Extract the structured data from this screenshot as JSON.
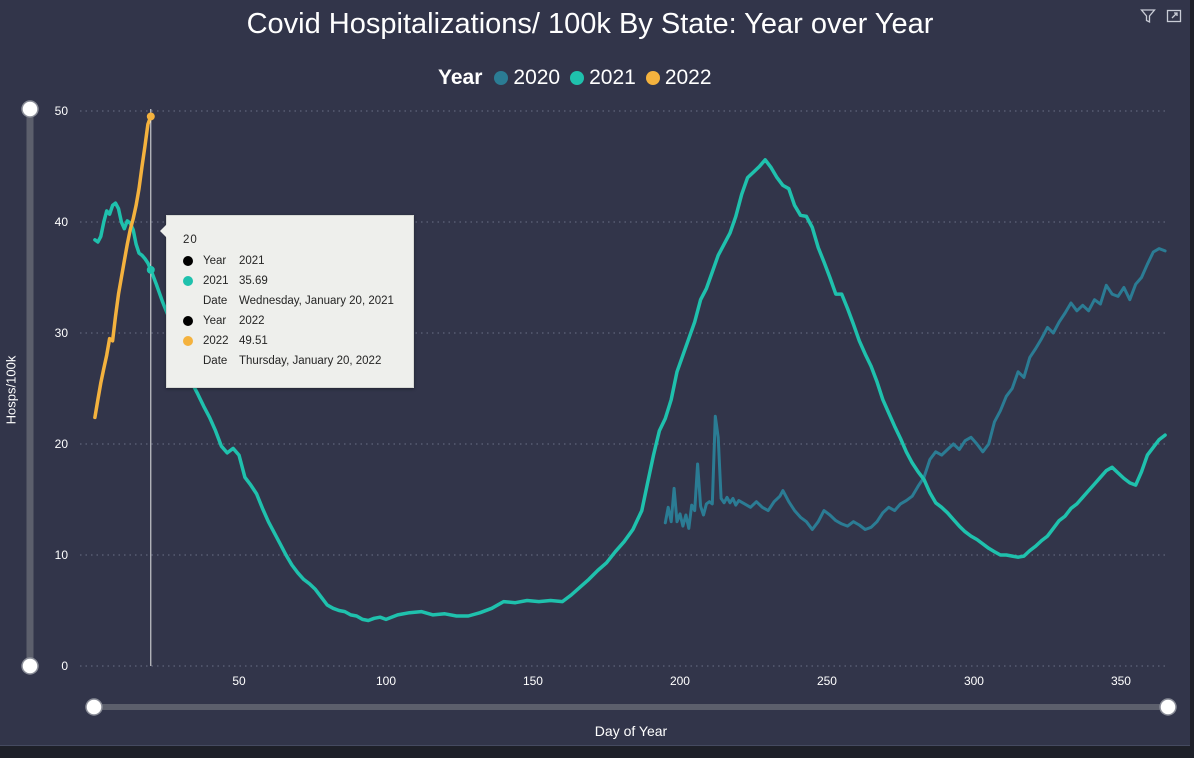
{
  "title": "Covid Hospitalizations/ 100k By State: Year over Year",
  "legend": {
    "heading": "Year",
    "items": [
      {
        "label": "2020",
        "color": "#2b7c94"
      },
      {
        "label": "2021",
        "color": "#1fc1ad"
      },
      {
        "label": "2022",
        "color": "#f4b23e"
      }
    ]
  },
  "icons": [
    "filter-icon",
    "focus-mode-icon"
  ],
  "tooltip": {
    "header": "20",
    "rows": [
      {
        "bullet": "#000000",
        "key": "Year",
        "value": "2021"
      },
      {
        "bullet": "#1fc1ad",
        "key": "2021",
        "value": "35.69"
      },
      {
        "bullet": "",
        "key": "Date",
        "value": "Wednesday, January 20, 2021"
      },
      {
        "bullet": "#000000",
        "key": "Year",
        "value": "2022"
      },
      {
        "bullet": "#f4b23e",
        "key": "2022",
        "value": "49.51"
      },
      {
        "bullet": "",
        "key": "Date",
        "value": "Thursday, January 20, 2022"
      }
    ]
  },
  "chart_data": {
    "type": "line",
    "title": "Covid Hospitalizations/ 100k By State: Year over Year",
    "xlabel": "Day of Year",
    "ylabel": "Hosps/100k",
    "xlim": [
      0,
      366
    ],
    "ylim": [
      0,
      50
    ],
    "xticks": [
      50,
      100,
      150,
      200,
      250,
      300,
      350
    ],
    "yticks": [
      0,
      10,
      20,
      30,
      40,
      50
    ],
    "grid": "horizontal dotted",
    "legend_position": "top",
    "hover_day": 20,
    "series": [
      {
        "name": "2020",
        "color": "#2b7c94",
        "points": [
          [
            195,
            12.9
          ],
          [
            196,
            14.3
          ],
          [
            197,
            13.0
          ],
          [
            198,
            16.0
          ],
          [
            199,
            13.0
          ],
          [
            200,
            13.7
          ],
          [
            201,
            12.6
          ],
          [
            202,
            13.6
          ],
          [
            203,
            12.4
          ],
          [
            204,
            14.5
          ],
          [
            205,
            14.0
          ],
          [
            206,
            18.2
          ],
          [
            207,
            14.4
          ],
          [
            208,
            13.6
          ],
          [
            209,
            14.6
          ],
          [
            210,
            14.8
          ],
          [
            211,
            14.6
          ],
          [
            212,
            22.5
          ],
          [
            213,
            20.6
          ],
          [
            214,
            15.1
          ],
          [
            215,
            14.7
          ],
          [
            216,
            15.2
          ],
          [
            217,
            14.7
          ],
          [
            218,
            15.1
          ],
          [
            219,
            14.5
          ],
          [
            220,
            14.9
          ],
          [
            222,
            14.6
          ],
          [
            224,
            14.3
          ],
          [
            226,
            14.8
          ],
          [
            228,
            14.3
          ],
          [
            230,
            14.0
          ],
          [
            232,
            14.8
          ],
          [
            234,
            15.3
          ],
          [
            235,
            15.8
          ],
          [
            237,
            14.8
          ],
          [
            239,
            14.0
          ],
          [
            241,
            13.4
          ],
          [
            243,
            13.0
          ],
          [
            245,
            12.3
          ],
          [
            247,
            13.0
          ],
          [
            249,
            14.0
          ],
          [
            251,
            13.6
          ],
          [
            253,
            13.1
          ],
          [
            255,
            12.8
          ],
          [
            257,
            12.6
          ],
          [
            259,
            13.0
          ],
          [
            261,
            12.7
          ],
          [
            263,
            12.3
          ],
          [
            265,
            12.5
          ],
          [
            267,
            13.0
          ],
          [
            269,
            13.8
          ],
          [
            271,
            14.3
          ],
          [
            273,
            14.0
          ],
          [
            275,
            14.6
          ],
          [
            277,
            14.9
          ],
          [
            279,
            15.3
          ],
          [
            281,
            16.2
          ],
          [
            283,
            17.0
          ],
          [
            285,
            18.6
          ],
          [
            287,
            19.3
          ],
          [
            289,
            19.0
          ],
          [
            291,
            19.5
          ],
          [
            293,
            20.0
          ],
          [
            295,
            19.5
          ],
          [
            297,
            20.3
          ],
          [
            299,
            20.6
          ],
          [
            301,
            20.0
          ],
          [
            303,
            19.3
          ],
          [
            305,
            20.0
          ],
          [
            307,
            22.0
          ],
          [
            309,
            23.0
          ],
          [
            311,
            24.3
          ],
          [
            313,
            25.0
          ],
          [
            315,
            26.5
          ],
          [
            317,
            26.0
          ],
          [
            319,
            27.8
          ],
          [
            321,
            28.6
          ],
          [
            323,
            29.5
          ],
          [
            325,
            30.5
          ],
          [
            327,
            30.0
          ],
          [
            329,
            31.0
          ],
          [
            331,
            31.8
          ],
          [
            333,
            32.7
          ],
          [
            335,
            32.0
          ],
          [
            337,
            32.5
          ],
          [
            339,
            32.0
          ],
          [
            341,
            33.0
          ],
          [
            343,
            32.6
          ],
          [
            345,
            34.3
          ],
          [
            347,
            33.5
          ],
          [
            349,
            33.3
          ],
          [
            351,
            34.1
          ],
          [
            353,
            33.0
          ],
          [
            355,
            34.4
          ],
          [
            357,
            35.0
          ],
          [
            359,
            36.2
          ],
          [
            361,
            37.3
          ],
          [
            363,
            37.6
          ],
          [
            365,
            37.4
          ]
        ]
      },
      {
        "name": "2021",
        "color": "#1fc1ad",
        "points": [
          [
            1,
            38.4
          ],
          [
            2,
            38.2
          ],
          [
            3,
            38.7
          ],
          [
            4,
            40.0
          ],
          [
            5,
            41.0
          ],
          [
            6,
            40.7
          ],
          [
            7,
            41.5
          ],
          [
            8,
            41.7
          ],
          [
            9,
            41.2
          ],
          [
            10,
            40.0
          ],
          [
            11,
            39.4
          ],
          [
            12,
            40.1
          ],
          [
            13,
            39.9
          ],
          [
            14,
            39.3
          ],
          [
            15,
            38.0
          ],
          [
            16,
            37.2
          ],
          [
            17,
            37.0
          ],
          [
            18,
            36.7
          ],
          [
            19,
            36.3
          ],
          [
            20,
            35.69
          ],
          [
            22,
            34.3
          ],
          [
            24,
            32.8
          ],
          [
            26,
            31.5
          ],
          [
            28,
            30.0
          ],
          [
            30,
            28.7
          ],
          [
            32,
            27.2
          ],
          [
            34,
            25.5
          ],
          [
            36,
            24.5
          ],
          [
            38,
            23.4
          ],
          [
            40,
            22.4
          ],
          [
            42,
            21.2
          ],
          [
            44,
            19.8
          ],
          [
            46,
            19.2
          ],
          [
            48,
            19.6
          ],
          [
            50,
            19.0
          ],
          [
            52,
            17.0
          ],
          [
            54,
            16.3
          ],
          [
            56,
            15.5
          ],
          [
            58,
            14.2
          ],
          [
            60,
            13.0
          ],
          [
            62,
            12.0
          ],
          [
            64,
            11.0
          ],
          [
            66,
            10.0
          ],
          [
            68,
            9.1
          ],
          [
            70,
            8.4
          ],
          [
            72,
            7.8
          ],
          [
            74,
            7.4
          ],
          [
            76,
            6.9
          ],
          [
            78,
            6.2
          ],
          [
            80,
            5.5
          ],
          [
            82,
            5.2
          ],
          [
            84,
            5.0
          ],
          [
            86,
            4.9
          ],
          [
            88,
            4.6
          ],
          [
            90,
            4.5
          ],
          [
            92,
            4.2
          ],
          [
            94,
            4.1
          ],
          [
            96,
            4.3
          ],
          [
            98,
            4.4
          ],
          [
            100,
            4.2
          ],
          [
            104,
            4.6
          ],
          [
            108,
            4.8
          ],
          [
            112,
            4.9
          ],
          [
            116,
            4.6
          ],
          [
            120,
            4.7
          ],
          [
            124,
            4.5
          ],
          [
            128,
            4.5
          ],
          [
            132,
            4.8
          ],
          [
            136,
            5.2
          ],
          [
            140,
            5.8
          ],
          [
            144,
            5.7
          ],
          [
            148,
            5.9
          ],
          [
            152,
            5.8
          ],
          [
            156,
            5.9
          ],
          [
            160,
            5.8
          ],
          [
            163,
            6.4
          ],
          [
            166,
            7.1
          ],
          [
            169,
            7.8
          ],
          [
            172,
            8.6
          ],
          [
            175,
            9.3
          ],
          [
            178,
            10.3
          ],
          [
            181,
            11.2
          ],
          [
            184,
            12.3
          ],
          [
            187,
            14.0
          ],
          [
            189,
            16.5
          ],
          [
            191,
            19.0
          ],
          [
            193,
            21.2
          ],
          [
            195,
            22.3
          ],
          [
            197,
            24.0
          ],
          [
            199,
            26.5
          ],
          [
            201,
            28.0
          ],
          [
            203,
            29.5
          ],
          [
            205,
            31.0
          ],
          [
            207,
            33.0
          ],
          [
            209,
            34.0
          ],
          [
            211,
            35.5
          ],
          [
            213,
            37.0
          ],
          [
            215,
            38.0
          ],
          [
            217,
            39.0
          ],
          [
            219,
            40.5
          ],
          [
            221,
            42.5
          ],
          [
            223,
            44.0
          ],
          [
            225,
            44.5
          ],
          [
            227,
            45.0
          ],
          [
            229,
            45.6
          ],
          [
            231,
            44.9
          ],
          [
            233,
            44.0
          ],
          [
            235,
            43.3
          ],
          [
            237,
            43.0
          ],
          [
            239,
            41.5
          ],
          [
            241,
            40.6
          ],
          [
            243,
            40.5
          ],
          [
            245,
            39.5
          ],
          [
            247,
            37.7
          ],
          [
            249,
            36.4
          ],
          [
            251,
            35.0
          ],
          [
            253,
            33.5
          ],
          [
            255,
            33.5
          ],
          [
            257,
            32.2
          ],
          [
            259,
            30.8
          ],
          [
            261,
            29.3
          ],
          [
            263,
            28.1
          ],
          [
            265,
            27.0
          ],
          [
            267,
            25.6
          ],
          [
            269,
            24.0
          ],
          [
            271,
            22.8
          ],
          [
            273,
            21.6
          ],
          [
            275,
            20.5
          ],
          [
            277,
            19.3
          ],
          [
            279,
            18.3
          ],
          [
            281,
            17.5
          ],
          [
            283,
            16.8
          ],
          [
            285,
            15.6
          ],
          [
            287,
            14.7
          ],
          [
            289,
            14.3
          ],
          [
            291,
            13.8
          ],
          [
            293,
            13.2
          ],
          [
            295,
            12.6
          ],
          [
            297,
            12.1
          ],
          [
            299,
            11.7
          ],
          [
            301,
            11.4
          ],
          [
            303,
            11.0
          ],
          [
            305,
            10.6
          ],
          [
            307,
            10.3
          ],
          [
            309,
            10.0
          ],
          [
            311,
            10.0
          ],
          [
            313,
            9.9
          ],
          [
            315,
            9.8
          ],
          [
            317,
            9.9
          ],
          [
            319,
            10.4
          ],
          [
            321,
            10.8
          ],
          [
            323,
            11.3
          ],
          [
            325,
            11.7
          ],
          [
            327,
            12.4
          ],
          [
            329,
            13.1
          ],
          [
            331,
            13.5
          ],
          [
            333,
            14.2
          ],
          [
            335,
            14.6
          ],
          [
            337,
            15.2
          ],
          [
            339,
            15.8
          ],
          [
            341,
            16.4
          ],
          [
            343,
            17.0
          ],
          [
            345,
            17.6
          ],
          [
            347,
            17.9
          ],
          [
            349,
            17.4
          ],
          [
            351,
            16.9
          ],
          [
            353,
            16.5
          ],
          [
            355,
            16.3
          ],
          [
            357,
            17.5
          ],
          [
            359,
            19.0
          ],
          [
            361,
            19.7
          ],
          [
            363,
            20.4
          ],
          [
            365,
            20.8
          ]
        ]
      },
      {
        "name": "2022",
        "color": "#f4b23e",
        "points": [
          [
            1,
            22.4
          ],
          [
            2,
            24.0
          ],
          [
            3,
            25.5
          ],
          [
            4,
            26.8
          ],
          [
            5,
            28.0
          ],
          [
            6,
            29.5
          ],
          [
            7,
            29.3
          ],
          [
            8,
            31.5
          ],
          [
            9,
            33.5
          ],
          [
            10,
            35.0
          ],
          [
            11,
            36.5
          ],
          [
            12,
            38.0
          ],
          [
            13,
            39.3
          ],
          [
            14,
            40.3
          ],
          [
            15,
            41.5
          ],
          [
            16,
            43.0
          ],
          [
            17,
            45.0
          ],
          [
            18,
            46.8
          ],
          [
            19,
            48.8
          ],
          [
            20,
            49.51
          ]
        ]
      }
    ]
  }
}
